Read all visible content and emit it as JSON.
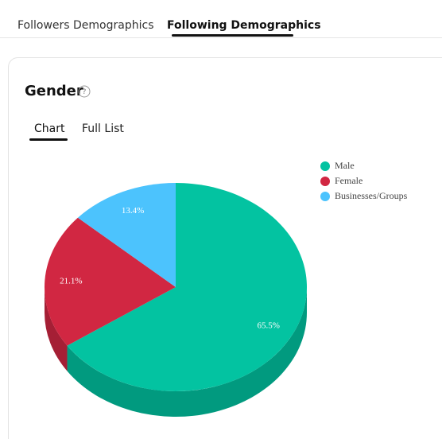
{
  "tabs": [
    "Followers Demographics",
    "Following Demographics"
  ],
  "card": {
    "title": "Gender",
    "help_icon": "?",
    "subtabs": [
      "Chart",
      "Full List"
    ]
  },
  "chart_data": {
    "type": "pie",
    "categories": [
      "Male",
      "Female",
      "Businesses/Groups"
    ],
    "values": [
      65.5,
      21.1,
      13.4
    ],
    "value_labels": [
      "65.5%",
      "21.1%",
      "13.4%"
    ],
    "colors": [
      "#03c3a1",
      "#d12742",
      "#4cc3fd"
    ],
    "side_colors": [
      "#019a7f",
      "#a51f35",
      "#2f9bd0"
    ],
    "legend": "top-right"
  }
}
